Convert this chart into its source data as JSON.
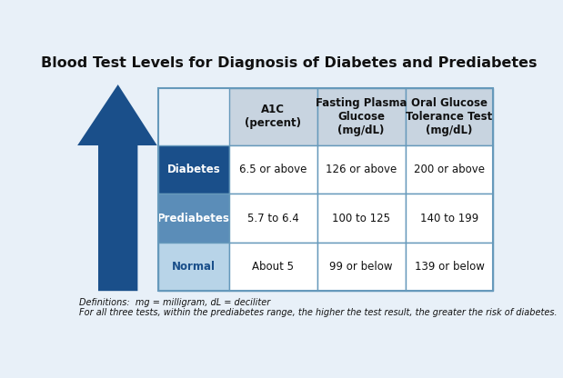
{
  "title": "Blood Test Levels for Diagnosis of Diabetes and Prediabetes",
  "col_headers": [
    "A1C\n(percent)",
    "Fasting Plasma\nGlucose\n(mg/dL)",
    "Oral Glucose\nTolerance Test\n(mg/dL)"
  ],
  "row_labels": [
    "Diabetes",
    "Prediabetes",
    "Normal"
  ],
  "row_label_colors": [
    "#1a4f8a",
    "#5b8db8",
    "#b8d4e8"
  ],
  "row_label_text_colors": [
    "#ffffff",
    "#ffffff",
    "#1a4f8a"
  ],
  "cell_data": [
    [
      "6.5 or above",
      "126 or above",
      "200 or above"
    ],
    [
      "5.7 to 6.4",
      "100 to 125",
      "140 to 199"
    ],
    [
      "About 5",
      "99 or below",
      "139 or below"
    ]
  ],
  "header_bg_color": "#c8d4e0",
  "cell_bg_color": "#ffffff",
  "arrow_color": "#1a4f8a",
  "border_color": "#6699bb",
  "footnote_line1": "Definitions:  mg = milligram, dL = deciliter",
  "footnote_line2": "For all three tests, within the prediabetes range, the higher the test result, the greater the risk of diabetes.",
  "bg_color": "#e8f0f8",
  "title_fontsize": 11.5,
  "header_fontsize": 8.5,
  "cell_fontsize": 8.5,
  "label_fontsize": 8.5,
  "footnote_fontsize": 7
}
